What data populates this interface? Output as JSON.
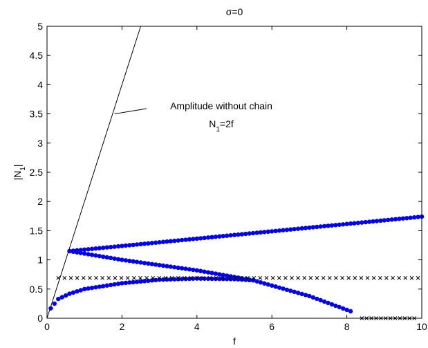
{
  "chart_data": {
    "type": "scatter",
    "title": "σ=0",
    "xlabel": "f",
    "ylabel": "|N1|",
    "xlim": [
      0,
      10
    ],
    "ylim": [
      0,
      5
    ],
    "xticks": [
      "0",
      "2",
      "4",
      "6",
      "8",
      "10"
    ],
    "yticks": [
      "0",
      "0.5",
      "1",
      "1.5",
      "2",
      "2.5",
      "3",
      "3.5",
      "4",
      "4.5",
      "5"
    ],
    "annotation": {
      "line1": "Amplitude without chain",
      "line2": "N1=2f",
      "pointer_at": [
        1.8,
        3.5
      ]
    },
    "series": [
      {
        "marker": "line",
        "color": "#000000",
        "x": [
          0,
          2.5
        ],
        "y": [
          0,
          5
        ]
      },
      {
        "marker": "dot",
        "color": "#0000ee",
        "branch": "upper",
        "x_range": [
          0.6,
          10
        ],
        "y_start": 1.15,
        "y_end": 1.74
      },
      {
        "marker": "dot",
        "color": "#0000ee",
        "branch": "middle",
        "x_range": [
          0.6,
          8.1
        ],
        "points": [
          [
            0.6,
            1.15
          ],
          [
            2,
            1.0
          ],
          [
            4,
            0.82
          ],
          [
            5.5,
            0.65
          ],
          [
            7,
            0.38
          ],
          [
            8.1,
            0.12
          ]
        ]
      },
      {
        "marker": "dot",
        "color": "#0000ee",
        "branch": "lower",
        "x_range": [
          0.1,
          5.5
        ],
        "points": [
          [
            0.1,
            0.17
          ],
          [
            0.3,
            0.33
          ],
          [
            0.6,
            0.42
          ],
          [
            1,
            0.5
          ],
          [
            2,
            0.6
          ],
          [
            3,
            0.66
          ],
          [
            4,
            0.68
          ],
          [
            5,
            0.67
          ],
          [
            5.5,
            0.65
          ]
        ]
      },
      {
        "marker": "x",
        "color": "#000000",
        "x_range": [
          0.3,
          9.9
        ],
        "y": 0.69,
        "count": 58
      },
      {
        "marker": "x",
        "color": "#000000",
        "x_range": [
          8.4,
          9.8
        ],
        "y": 0.0,
        "count": 12
      }
    ]
  }
}
